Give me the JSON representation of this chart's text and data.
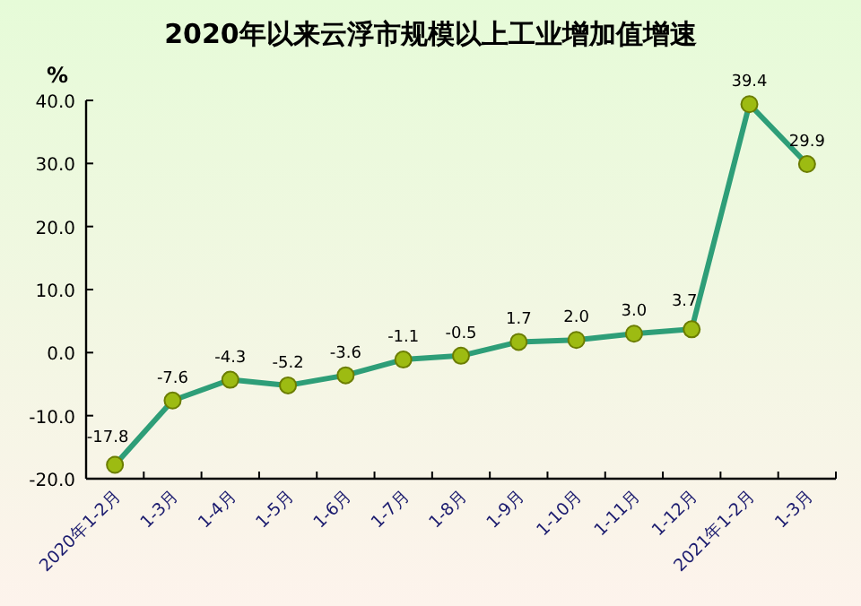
{
  "chart_data": {
    "type": "line",
    "title": "2020年以来云浮市规模以上工业增加值增速",
    "ylabel": "%",
    "categories": [
      "2020年1-2月",
      "1-3月",
      "1-4月",
      "1-5月",
      "1-6月",
      "1-7月",
      "1-8月",
      "1-9月",
      "1-10月",
      "1-11月",
      "1-12月",
      "2021年1-2月",
      "1-3月"
    ],
    "series": [
      {
        "color": "#2e9e78",
        "values": [
          -17.8,
          -7.6,
          -4.3,
          -5.2,
          -3.6,
          -1.1,
          -0.5,
          1.7,
          2.0,
          3.0,
          3.7,
          39.4,
          29.9
        ],
        "value_labels": [
          "-17.8",
          "-7.6",
          "-4.3",
          "-5.2",
          "-3.6",
          "-1.1",
          "-0.5",
          "1.7",
          "2.0",
          "3.0",
          "3.7",
          "39.4",
          "29.9"
        ]
      }
    ],
    "ylim": [
      -20,
      40
    ],
    "yticks": [
      {
        "value": -20,
        "label": "-20.0"
      },
      {
        "value": -10,
        "label": "-10.0"
      },
      {
        "value": 0,
        "label": "0.0"
      },
      {
        "value": 10,
        "label": "10.0"
      },
      {
        "value": 20,
        "label": "20.0"
      },
      {
        "value": 30,
        "label": "30.0"
      },
      {
        "value": 40,
        "label": "40.0"
      }
    ],
    "marker": "circle",
    "grid": false
  }
}
